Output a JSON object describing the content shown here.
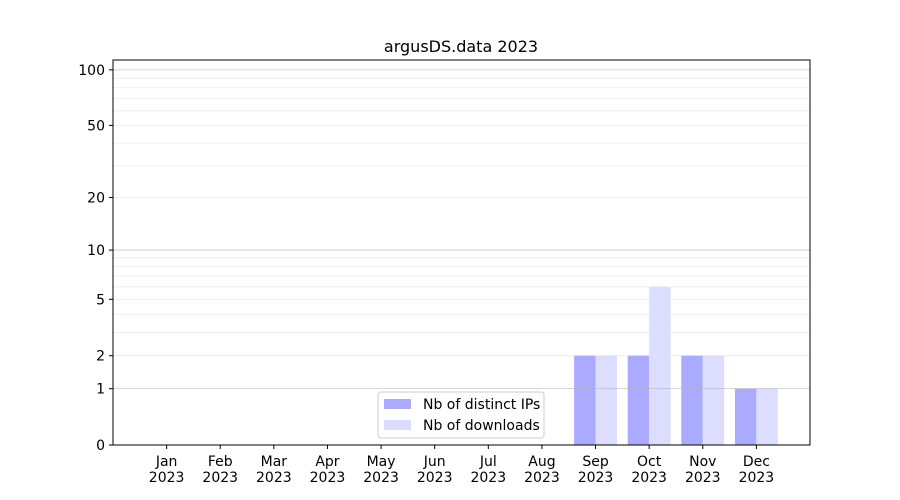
{
  "chart_data": {
    "type": "bar",
    "title": "argusDS.data 2023",
    "xlabel": "",
    "ylabel": "",
    "yscale": "log(1+y)",
    "ylim": [
      0,
      113
    ],
    "yticks": [
      0,
      1,
      2,
      5,
      10,
      20,
      50,
      100
    ],
    "grid": true,
    "legend_position": "lower-center",
    "categories": [
      [
        "Jan",
        "2023"
      ],
      [
        "Feb",
        "2023"
      ],
      [
        "Mar",
        "2023"
      ],
      [
        "Apr",
        "2023"
      ],
      [
        "May",
        "2023"
      ],
      [
        "Jun",
        "2023"
      ],
      [
        "Jul",
        "2023"
      ],
      [
        "Aug",
        "2023"
      ],
      [
        "Sep",
        "2023"
      ],
      [
        "Oct",
        "2023"
      ],
      [
        "Nov",
        "2023"
      ],
      [
        "Dec",
        "2023"
      ]
    ],
    "series": [
      {
        "name": "Nb of distinct IPs",
        "color": "#aaaaff",
        "values": [
          0,
          0,
          0,
          0,
          0,
          0,
          0,
          0,
          2,
          2,
          2,
          1
        ]
      },
      {
        "name": "Nb of downloads",
        "color": "#ddddff",
        "values": [
          0,
          0,
          0,
          0,
          0,
          0,
          0,
          0,
          2,
          6,
          2,
          1
        ]
      }
    ]
  }
}
